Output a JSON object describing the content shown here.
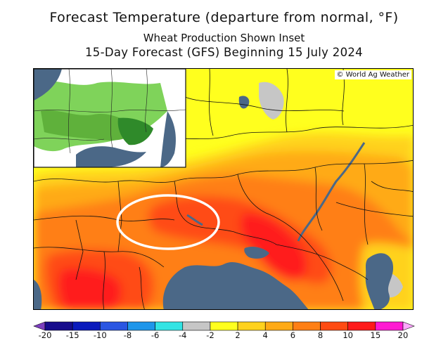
{
  "title": {
    "line1": "Forecast Temperature (departure from normal, °F)",
    "line2": "Wheat Production Shown Inset",
    "line3": "15-Day Forecast (GFS) Beginning 15 July 2024"
  },
  "map": {
    "credit": "© World Ag Weather",
    "region": "Eastern Europe / Black Sea",
    "highlight": "Ukraine wheat belt"
  },
  "colorbar": {
    "labels": [
      "-20",
      "-15",
      "-10",
      "-8",
      "-6",
      "-4",
      "-2",
      "2",
      "4",
      "6",
      "8",
      "10",
      "15",
      "20"
    ],
    "colors": [
      "#7d3fbf",
      "#170c8c",
      "#0a1abc",
      "#2a56e2",
      "#1f96ea",
      "#33e4e4",
      "#c6c6c6",
      "#ffff1e",
      "#ffd21e",
      "#ffaa16",
      "#ff7f14",
      "#ff4b12",
      "#ff1a1a",
      "#ff1ad2",
      "#ffa6ff"
    ]
  },
  "colors": {
    "water": "#4b6887",
    "inset_green": "#7fd35a"
  }
}
